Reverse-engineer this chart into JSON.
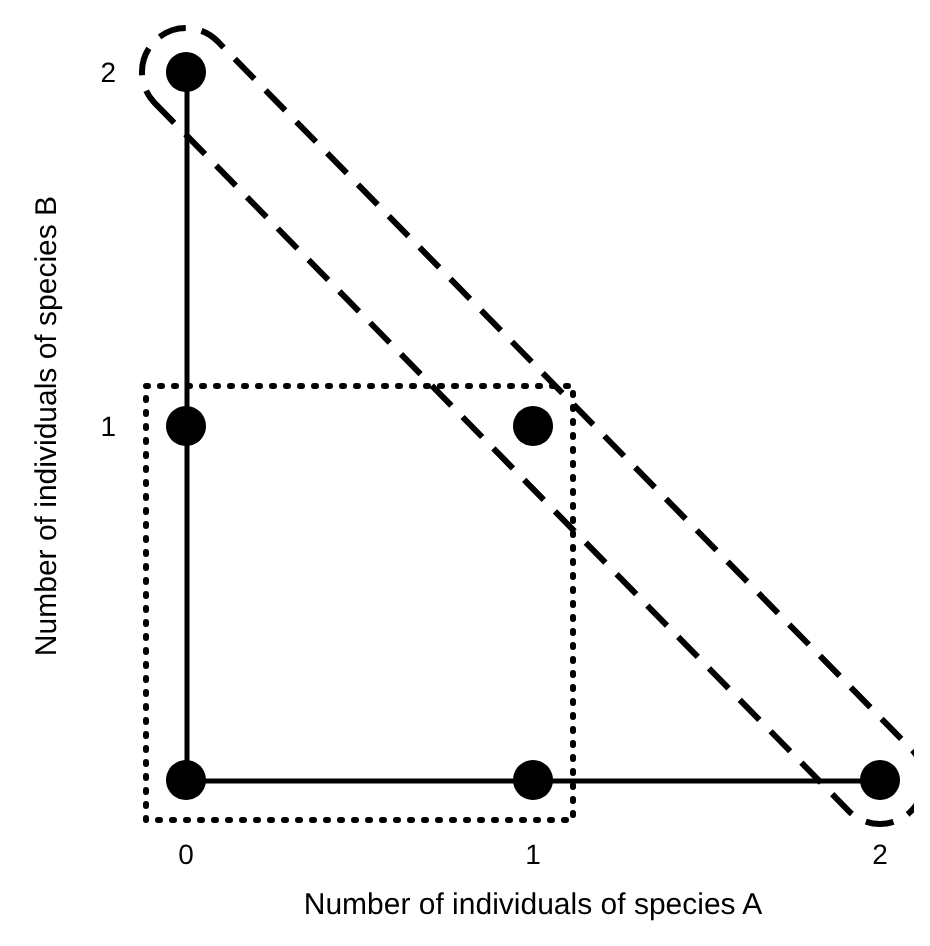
{
  "chart_data": {
    "type": "scatter",
    "xlabel": "Number of individuals of species A",
    "ylabel": "Number of individuals of species B",
    "xlim": [
      0,
      2
    ],
    "ylim": [
      0,
      2
    ],
    "xticks": [
      0,
      1,
      2
    ],
    "yticks": [
      1,
      2
    ],
    "grid": false,
    "series": [
      {
        "color": "#000000",
        "marker": "circle",
        "x": [
          0,
          1,
          2,
          0,
          1,
          0
        ],
        "values": [
          0,
          0,
          0,
          1,
          1,
          2
        ]
      }
    ]
  }
}
